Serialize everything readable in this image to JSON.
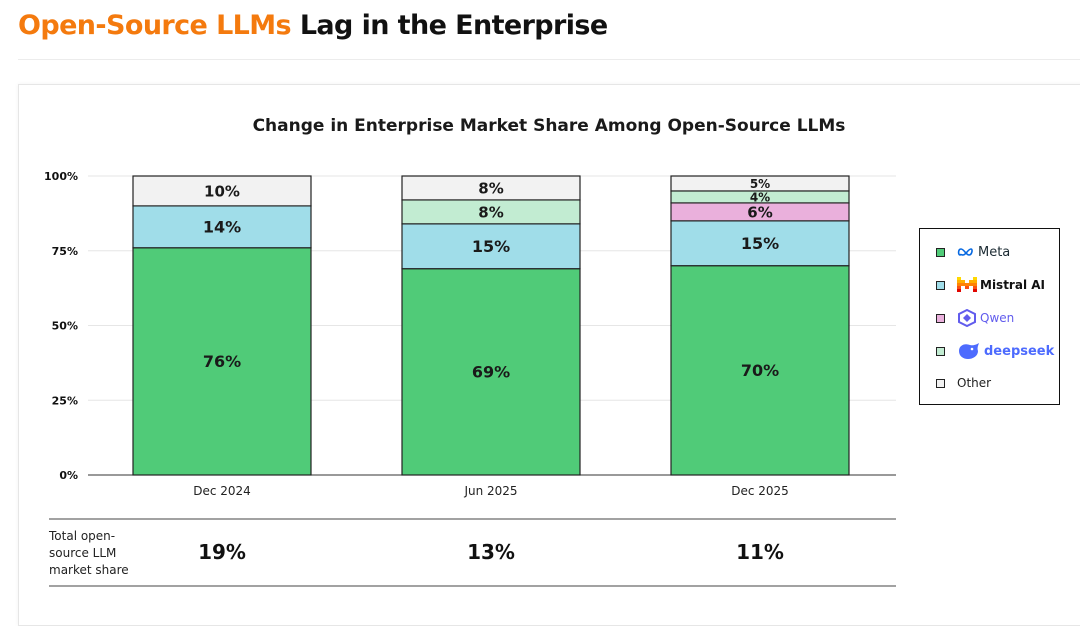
{
  "page": {
    "title_accent": "Open-Source LLMs",
    "title_rest": " Lag in the Enterprise"
  },
  "colors": {
    "accent": "#f47a0e",
    "Meta": "#50cb78",
    "Mistral AI": "#a0dde9",
    "Qwen": "#eab0dc",
    "deepseek": "#c2ecd2",
    "Other": "#f2f2f2"
  },
  "chart_data": {
    "type": "bar",
    "stacked": true,
    "title": "Change in Enterprise Market Share Among Open-Source LLMs",
    "categories": [
      "Dec 2024",
      "Jun 2025",
      "Dec 2025"
    ],
    "series": [
      {
        "name": "Meta",
        "values": [
          76,
          69,
          70
        ],
        "labels": [
          "76%",
          "69%",
          "70%"
        ]
      },
      {
        "name": "Mistral AI",
        "values": [
          14,
          15,
          15
        ],
        "labels": [
          "14%",
          "15%",
          "15%"
        ]
      },
      {
        "name": "Qwen",
        "values": [
          0,
          0,
          6
        ],
        "labels": [
          "",
          "",
          "6%"
        ]
      },
      {
        "name": "deepseek",
        "values": [
          0,
          8,
          4
        ],
        "labels": [
          "",
          "8%",
          "4%"
        ]
      },
      {
        "name": "Other",
        "values": [
          10,
          8,
          5
        ],
        "labels": [
          "10%",
          "8%",
          "5%"
        ]
      }
    ],
    "ylim": [
      0,
      100
    ],
    "yticks": [
      0,
      25,
      50,
      75,
      100
    ],
    "ytick_labels": [
      "0%",
      "25%",
      "50%",
      "75%",
      "100%"
    ],
    "xlabel": "",
    "ylabel": "",
    "legend_position": "right",
    "summary_row": {
      "label_lines": [
        "Total open-",
        "source LLM",
        "market share"
      ],
      "values": [
        "19%",
        "13%",
        "11%"
      ]
    }
  },
  "legend": {
    "items": [
      {
        "series": "Meta",
        "label": "Meta"
      },
      {
        "series": "Mistral AI",
        "label": "Mistral AI"
      },
      {
        "series": "Qwen",
        "label": "Qwen"
      },
      {
        "series": "deepseek",
        "label": "deepseek"
      },
      {
        "series": "Other",
        "label": "Other"
      }
    ]
  }
}
